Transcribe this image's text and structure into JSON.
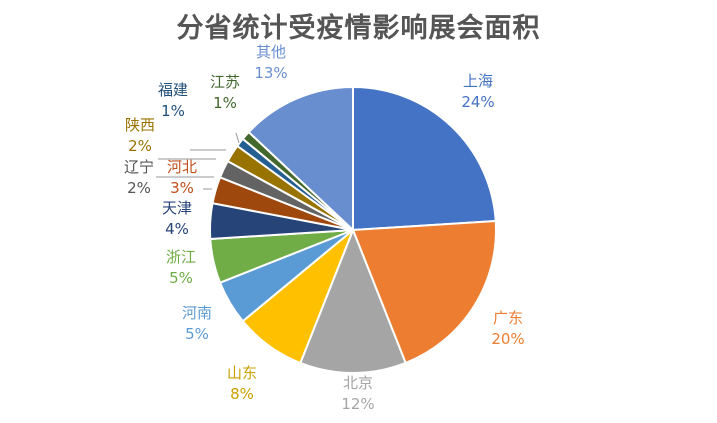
{
  "chart_data": {
    "type": "pie",
    "title": "分省统计受疫情影响展会面积",
    "slices": [
      {
        "label": "上海",
        "value": 24,
        "value_label": "24%",
        "color": "#4472C4"
      },
      {
        "label": "广东",
        "value": 20,
        "value_label": "20%",
        "color": "#ED7D31"
      },
      {
        "label": "北京",
        "value": 12,
        "value_label": "12%",
        "color": "#A5A5A5"
      },
      {
        "label": "山东",
        "value": 8,
        "value_label": "8%",
        "color": "#FFC000"
      },
      {
        "label": "河南",
        "value": 5,
        "value_label": "5%",
        "color": "#5B9BD5"
      },
      {
        "label": "浙江",
        "value": 5,
        "value_label": "5%",
        "color": "#70AD47"
      },
      {
        "label": "天津",
        "value": 4,
        "value_label": "4%",
        "color": "#264478"
      },
      {
        "label": "河北",
        "value": 3,
        "value_label": "3%",
        "color": "#9E480E"
      },
      {
        "label": "辽宁",
        "value": 2,
        "value_label": "2%",
        "color": "#636363"
      },
      {
        "label": "陕西",
        "value": 2,
        "value_label": "2%",
        "color": "#997300"
      },
      {
        "label": "福建",
        "value": 1,
        "value_label": "1%",
        "color": "#255E91"
      },
      {
        "label": "江苏",
        "value": 1,
        "value_label": "1%",
        "color": "#43682B"
      },
      {
        "label": "其他",
        "value": 13,
        "value_label": "13%",
        "color": "#698ED0"
      }
    ]
  }
}
